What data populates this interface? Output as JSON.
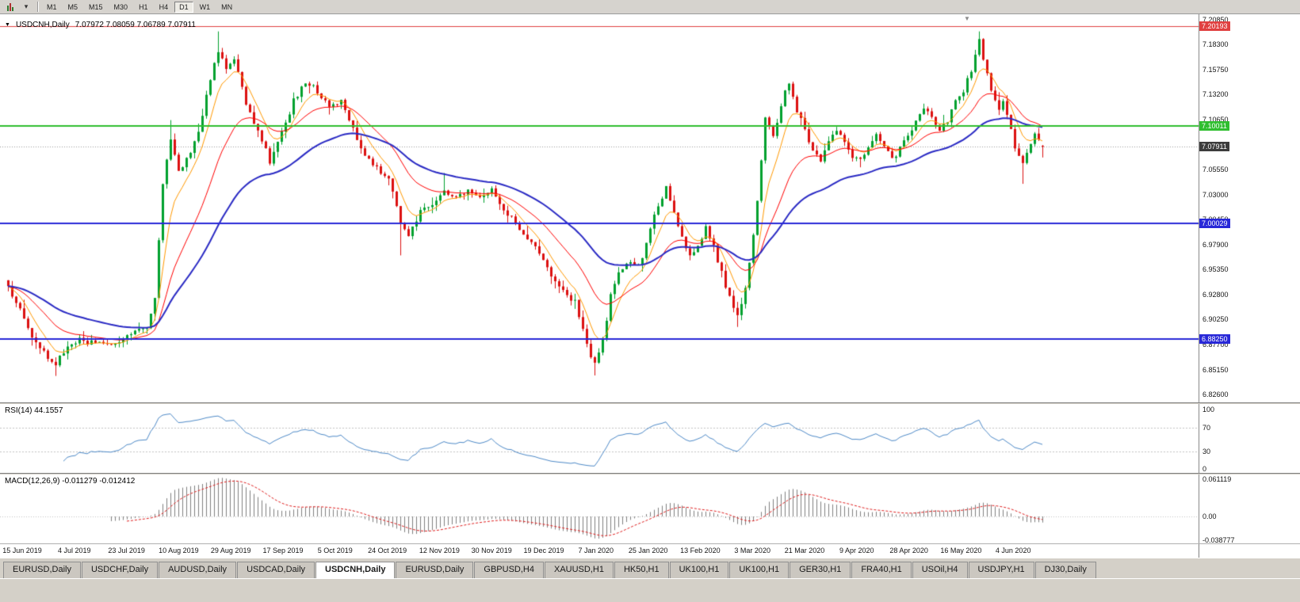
{
  "toolbar": {
    "chart_type_icon": "candlestick-chart-icon",
    "dropdown_glyph": "▾",
    "timeframes": [
      "M1",
      "M5",
      "M15",
      "M30",
      "H1",
      "H4",
      "D1",
      "W1",
      "MN"
    ],
    "active_timeframe": "D1"
  },
  "chart": {
    "collapse_icon": "▼",
    "shift_marker": "▼",
    "title": "USDCNH,Daily",
    "ohlc": "7.07972 7.08059 7.06789 7.07911",
    "open": "7.07972",
    "high": "7.08059",
    "low": "7.06789",
    "close": "7.07911",
    "current_price": "7.07911",
    "current_price_value": 7.07911,
    "colors": {
      "bull": "#00A12E",
      "bear": "#DC1010",
      "price_badge_bg": "#3C3C3C"
    },
    "levels": [
      {
        "value": 7.20193,
        "label": "7.20193",
        "color": "#E04040",
        "width": 1
      },
      {
        "value": 7.10011,
        "label": "7.10011",
        "color": "#2FBE2F",
        "width": 2
      },
      {
        "value": 7.00029,
        "label": "7.00029",
        "color": "#2828D8",
        "width": 2
      },
      {
        "value": 6.8825,
        "label": "6.88250",
        "color": "#2828D8",
        "width": 2
      }
    ],
    "axis_ticks": [
      {
        "label": "7.20850",
        "value": 7.2085
      },
      {
        "label": "7.18300",
        "value": 7.183
      },
      {
        "label": "7.15750",
        "value": 7.1575
      },
      {
        "label": "7.13200",
        "value": 7.132
      },
      {
        "label": "7.10650",
        "value": 7.1065
      },
      {
        "label": "7.08100",
        "value": 7.081
      },
      {
        "label": "7.05550",
        "value": 7.0555
      },
      {
        "label": "7.03000",
        "value": 7.03
      },
      {
        "label": "7.00450",
        "value": 7.0045
      },
      {
        "label": "6.97900",
        "value": 6.979
      },
      {
        "label": "6.95350",
        "value": 6.9535
      },
      {
        "label": "6.92800",
        "value": 6.928
      },
      {
        "label": "6.90250",
        "value": 6.9025
      },
      {
        "label": "6.87700",
        "value": 6.877
      },
      {
        "label": "6.85150",
        "value": 6.8515
      },
      {
        "label": "6.82600",
        "value": 6.826
      }
    ]
  },
  "rsi": {
    "label": "RSI(14) 44.1557",
    "period": 14,
    "current_value": "44.1557",
    "color": "#4E8AC8",
    "guide_levels": [
      70,
      30
    ],
    "axis_labels": [
      {
        "label": "100",
        "value": 100
      },
      {
        "label": "70",
        "value": 70
      },
      {
        "label": "30",
        "value": 30
      },
      {
        "label": "0",
        "value": 0
      }
    ]
  },
  "macd": {
    "label": "MACD(12,26,9) -0.011279 -0.012412",
    "current_values": "-0.011279 -0.012412",
    "histogram_color": "#808080",
    "signal_color": "#E02020",
    "axis_labels": [
      {
        "label": "0.061119",
        "value": 0.061119
      },
      {
        "label": "0.00",
        "value": 0
      },
      {
        "label": "-0.038777",
        "value": -0.038777
      }
    ]
  },
  "date_axis": [
    "15 Jun 2019",
    "4 Jul 2019",
    "23 Jul 2019",
    "10 Aug 2019",
    "29 Aug 2019",
    "17 Sep 2019",
    "5 Oct 2019",
    "24 Oct 2019",
    "12 Nov 2019",
    "30 Nov 2019",
    "19 Dec 2019",
    "7 Jan 2020",
    "25 Jan 2020",
    "13 Feb 2020",
    "3 Mar 2020",
    "21 Mar 2020",
    "9 Apr 2020",
    "28 Apr 2020",
    "16 May 2020",
    "4 Jun 2020"
  ],
  "tabs": {
    "items": [
      "EURUSD,Daily",
      "USDCHF,Daily",
      "AUDUSD,Daily",
      "USDCAD,Daily",
      "USDCNH,Daily",
      "EURUSD,Daily",
      "GBPUSD,H4",
      "XAUUSD,H1",
      "HK50,H1",
      "UK100,H1",
      "UK100,H1",
      "GER30,H1",
      "FRA40,H1",
      "USOil,H4",
      "USDJPY,H1",
      "DJ30,Daily"
    ],
    "active_index": 4
  },
  "chart_data": {
    "type": "candlestick",
    "symbol": "USDCNH",
    "timeframe": "D1",
    "x_start": "15 Jun 2019",
    "x_end": "12 Jun 2020",
    "y_range": [
      6.818,
      7.214
    ],
    "candle_count": 262,
    "last_ohlc": {
      "o": 7.07972,
      "h": 7.08059,
      "l": 7.06789,
      "c": 7.07911
    },
    "close_anchors": [
      [
        0,
        6.935
      ],
      [
        3,
        6.915
      ],
      [
        6,
        6.885
      ],
      [
        9,
        6.868
      ],
      [
        12,
        6.857
      ],
      [
        15,
        6.875
      ],
      [
        18,
        6.882
      ],
      [
        24,
        6.876
      ],
      [
        30,
        6.884
      ],
      [
        35,
        6.896
      ],
      [
        37,
        6.922
      ],
      [
        39,
        7.04
      ],
      [
        41,
        7.088
      ],
      [
        43,
        7.052
      ],
      [
        45,
        7.066
      ],
      [
        48,
        7.092
      ],
      [
        51,
        7.148
      ],
      [
        53,
        7.178
      ],
      [
        55,
        7.158
      ],
      [
        57,
        7.168
      ],
      [
        60,
        7.122
      ],
      [
        63,
        7.096
      ],
      [
        66,
        7.064
      ],
      [
        69,
        7.092
      ],
      [
        72,
        7.126
      ],
      [
        75,
        7.146
      ],
      [
        78,
        7.136
      ],
      [
        81,
        7.12
      ],
      [
        84,
        7.126
      ],
      [
        87,
        7.096
      ],
      [
        90,
        7.072
      ],
      [
        93,
        7.056
      ],
      [
        96,
        7.046
      ],
      [
        99,
        7.0
      ],
      [
        101,
        6.986
      ],
      [
        104,
        7.012
      ],
      [
        107,
        7.022
      ],
      [
        110,
        7.036
      ],
      [
        113,
        7.026
      ],
      [
        116,
        7.036
      ],
      [
        119,
        7.03
      ],
      [
        122,
        7.036
      ],
      [
        125,
        7.016
      ],
      [
        128,
        7.0
      ],
      [
        131,
        6.986
      ],
      [
        134,
        6.97
      ],
      [
        137,
        6.946
      ],
      [
        140,
        6.93
      ],
      [
        143,
        6.92
      ],
      [
        145,
        6.892
      ],
      [
        147,
        6.864
      ],
      [
        148,
        6.856
      ],
      [
        150,
        6.882
      ],
      [
        152,
        6.926
      ],
      [
        154,
        6.95
      ],
      [
        156,
        6.962
      ],
      [
        158,
        6.956
      ],
      [
        160,
        6.966
      ],
      [
        162,
        6.996
      ],
      [
        164,
        7.02
      ],
      [
        166,
        7.036
      ],
      [
        168,
        7.01
      ],
      [
        170,
        6.986
      ],
      [
        172,
        6.966
      ],
      [
        174,
        6.976
      ],
      [
        176,
        6.996
      ],
      [
        178,
        6.976
      ],
      [
        180,
        6.95
      ],
      [
        182,
        6.926
      ],
      [
        184,
        6.906
      ],
      [
        186,
        6.936
      ],
      [
        188,
        6.986
      ],
      [
        190,
        7.062
      ],
      [
        191,
        7.11
      ],
      [
        193,
        7.09
      ],
      [
        195,
        7.122
      ],
      [
        197,
        7.146
      ],
      [
        199,
        7.116
      ],
      [
        201,
        7.096
      ],
      [
        203,
        7.076
      ],
      [
        205,
        7.066
      ],
      [
        207,
        7.086
      ],
      [
        209,
        7.096
      ],
      [
        211,
        7.082
      ],
      [
        213,
        7.07
      ],
      [
        215,
        7.066
      ],
      [
        217,
        7.08
      ],
      [
        219,
        7.09
      ],
      [
        221,
        7.08
      ],
      [
        223,
        7.066
      ],
      [
        225,
        7.076
      ],
      [
        227,
        7.09
      ],
      [
        229,
        7.106
      ],
      [
        231,
        7.12
      ],
      [
        233,
        7.11
      ],
      [
        235,
        7.096
      ],
      [
        237,
        7.106
      ],
      [
        239,
        7.126
      ],
      [
        241,
        7.136
      ],
      [
        243,
        7.156
      ],
      [
        245,
        7.186
      ],
      [
        246,
        7.166
      ],
      [
        248,
        7.136
      ],
      [
        250,
        7.116
      ],
      [
        251,
        7.126
      ],
      [
        253,
        7.096
      ],
      [
        254,
        7.076
      ],
      [
        256,
        7.06
      ],
      [
        258,
        7.08
      ],
      [
        259,
        7.092
      ],
      [
        261,
        7.079
      ]
    ],
    "wick_points": {
      "highs": [
        [
          53,
          7.1965
        ],
        [
          245,
          7.1965
        ],
        [
          41,
          7.106
        ],
        [
          110,
          7.052
        ]
      ],
      "lows": [
        [
          148,
          6.8455
        ],
        [
          12,
          6.845
        ],
        [
          99,
          6.968
        ],
        [
          184,
          6.895
        ],
        [
          256,
          7.041
        ]
      ]
    },
    "indicators": {
      "moving_averages": [
        {
          "name": "ma-fast",
          "color": "#FF9900",
          "period": 7
        },
        {
          "name": "ma-mid",
          "color": "#FF0000",
          "period": 20
        },
        {
          "name": "ma-slow",
          "color": "#2A2AC4",
          "period": 45
        }
      ],
      "rsi_period": 14,
      "rsi_current": 44.1557,
      "macd_params": [
        12,
        26,
        9
      ],
      "macd_current": [
        -0.011279,
        -0.012412
      ]
    }
  }
}
